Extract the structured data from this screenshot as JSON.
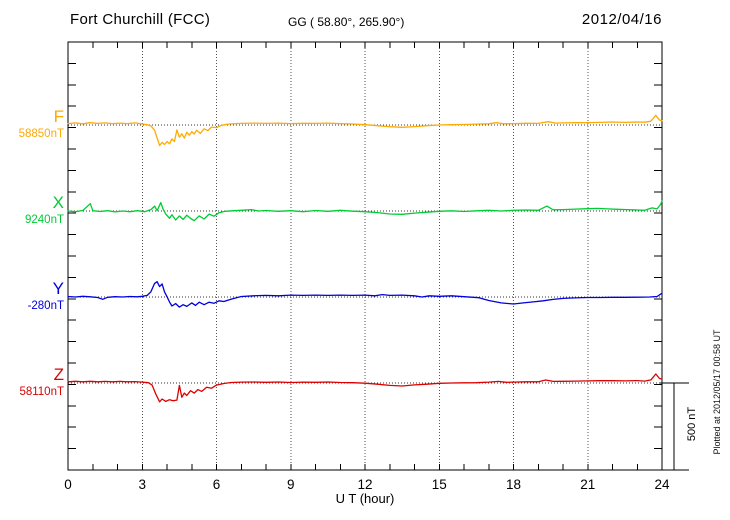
{
  "header": {
    "station": "Fort Churchill (FCC)",
    "coordinates": "GG ( 58.80°, 265.90°)",
    "date": "2012/04/16"
  },
  "footer": {
    "plotted_at": "Plotted at 2012/05/17 00:58 UT"
  },
  "chart_data": {
    "type": "line",
    "title": "Fort Churchill (FCC)",
    "subtitle": "GG ( 58.80°, 265.90°)",
    "date": "2012/04/16",
    "xlabel": "U T (hour)",
    "x_range": [
      0,
      24
    ],
    "x_ticks": [
      0,
      3,
      6,
      9,
      12,
      15,
      18,
      21,
      24
    ],
    "x_minor_tick_interval_hours": 1,
    "grid": {
      "vertical_dotted_every_hours": 3,
      "horizontal_dotted": "one dotted baseline per component"
    },
    "y_scale_bar": {
      "label": "500 nT",
      "nT": 500
    },
    "legend_position": "left margin, one colored label per trace",
    "series": [
      {
        "name": "F",
        "baseline_label": "58850nT",
        "baseline_nT": 58850,
        "color": "#FFAA00",
        "units": "nT deviation from baseline",
        "points": [
          [
            0,
            8
          ],
          [
            0.3,
            12
          ],
          [
            0.6,
            7
          ],
          [
            0.9,
            13
          ],
          [
            1.2,
            9
          ],
          [
            1.5,
            12
          ],
          [
            1.8,
            8
          ],
          [
            2.1,
            11
          ],
          [
            2.4,
            8
          ],
          [
            2.7,
            12
          ],
          [
            3.0,
            6
          ],
          [
            3.2,
            2
          ],
          [
            3.35,
            -5
          ],
          [
            3.5,
            -30
          ],
          [
            3.6,
            -75
          ],
          [
            3.7,
            -118
          ],
          [
            3.8,
            -100
          ],
          [
            3.9,
            -112
          ],
          [
            4.0,
            -95
          ],
          [
            4.1,
            -108
          ],
          [
            4.2,
            -80
          ],
          [
            4.3,
            -95
          ],
          [
            4.4,
            -28
          ],
          [
            4.5,
            -70
          ],
          [
            4.6,
            -50
          ],
          [
            4.7,
            -75
          ],
          [
            4.8,
            -42
          ],
          [
            4.9,
            -58
          ],
          [
            5.0,
            -38
          ],
          [
            5.1,
            -52
          ],
          [
            5.2,
            -30
          ],
          [
            5.35,
            -48
          ],
          [
            5.5,
            -22
          ],
          [
            5.65,
            -32
          ],
          [
            5.8,
            -12
          ],
          [
            6.0,
            -15
          ],
          [
            6.2,
            -2
          ],
          [
            6.5,
            6
          ],
          [
            7,
            9
          ],
          [
            7.5,
            11
          ],
          [
            8,
            9
          ],
          [
            8.5,
            11
          ],
          [
            9,
            8
          ],
          [
            9.5,
            10
          ],
          [
            10,
            9
          ],
          [
            10.5,
            11
          ],
          [
            11,
            8
          ],
          [
            11.5,
            6
          ],
          [
            12,
            2
          ],
          [
            12.5,
            -4
          ],
          [
            13,
            -10
          ],
          [
            13.5,
            -13
          ],
          [
            14,
            -9
          ],
          [
            14.5,
            -4
          ],
          [
            15,
            0
          ],
          [
            15.5,
            2
          ],
          [
            16,
            3
          ],
          [
            16.5,
            5
          ],
          [
            17,
            7
          ],
          [
            17.3,
            13
          ],
          [
            17.6,
            7
          ],
          [
            18,
            8
          ],
          [
            18.5,
            10
          ],
          [
            19,
            9
          ],
          [
            19.4,
            19
          ],
          [
            19.7,
            11
          ],
          [
            20,
            12
          ],
          [
            20.5,
            13
          ],
          [
            21,
            14
          ],
          [
            21.5,
            15
          ],
          [
            22,
            17
          ],
          [
            22.5,
            15
          ],
          [
            23,
            17
          ],
          [
            23.3,
            16
          ],
          [
            23.55,
            22
          ],
          [
            23.75,
            56
          ],
          [
            23.9,
            28
          ],
          [
            24,
            24
          ]
        ]
      },
      {
        "name": "X",
        "baseline_label": "9240nT",
        "baseline_nT": 9240,
        "color": "#00CC33",
        "units": "nT deviation from baseline",
        "points": [
          [
            0,
            0
          ],
          [
            0.3,
            -4
          ],
          [
            0.6,
            3
          ],
          [
            0.9,
            42
          ],
          [
            1.0,
            2
          ],
          [
            1.3,
            -3
          ],
          [
            1.6,
            2
          ],
          [
            1.9,
            -5
          ],
          [
            2.2,
            0
          ],
          [
            2.5,
            -4
          ],
          [
            2.8,
            2
          ],
          [
            3.1,
            -4
          ],
          [
            3.35,
            8
          ],
          [
            3.5,
            28
          ],
          [
            3.6,
            2
          ],
          [
            3.75,
            48
          ],
          [
            3.85,
            8
          ],
          [
            3.95,
            -18
          ],
          [
            4.1,
            -42
          ],
          [
            4.2,
            -22
          ],
          [
            4.35,
            -52
          ],
          [
            4.5,
            -28
          ],
          [
            4.65,
            -48
          ],
          [
            4.8,
            -24
          ],
          [
            4.95,
            -42
          ],
          [
            5.1,
            -56
          ],
          [
            5.3,
            -28
          ],
          [
            5.5,
            -46
          ],
          [
            5.7,
            -18
          ],
          [
            5.9,
            -30
          ],
          [
            6.1,
            -10
          ],
          [
            6.35,
            -2
          ],
          [
            6.7,
            2
          ],
          [
            7,
            4
          ],
          [
            7.4,
            8
          ],
          [
            7.7,
            0
          ],
          [
            8,
            3
          ],
          [
            8.5,
            -2
          ],
          [
            9,
            2
          ],
          [
            9.5,
            -4
          ],
          [
            10,
            3
          ],
          [
            10.5,
            -2
          ],
          [
            11,
            4
          ],
          [
            11.5,
            -1
          ],
          [
            12,
            -4
          ],
          [
            12.5,
            -9
          ],
          [
            13,
            -17
          ],
          [
            13.5,
            -19
          ],
          [
            14,
            -12
          ],
          [
            14.5,
            -7
          ],
          [
            15,
            -2
          ],
          [
            15.5,
            1
          ],
          [
            16,
            -3
          ],
          [
            16.5,
            1
          ],
          [
            17,
            4
          ],
          [
            17.5,
            0
          ],
          [
            18,
            4
          ],
          [
            18.5,
            6
          ],
          [
            19,
            4
          ],
          [
            19.35,
            28
          ],
          [
            19.6,
            7
          ],
          [
            20,
            8
          ],
          [
            20.5,
            11
          ],
          [
            21,
            13
          ],
          [
            21.4,
            15
          ],
          [
            21.8,
            12
          ],
          [
            22.2,
            10
          ],
          [
            22.6,
            8
          ],
          [
            23,
            6
          ],
          [
            23.3,
            4
          ],
          [
            23.6,
            18
          ],
          [
            23.8,
            12
          ],
          [
            23.95,
            40
          ],
          [
            24,
            58
          ]
        ]
      },
      {
        "name": "Y",
        "baseline_label": "-280nT",
        "baseline_nT": -280,
        "color": "#0000DD",
        "units": "nT deviation from baseline",
        "points": [
          [
            0,
            3
          ],
          [
            0.3,
            0
          ],
          [
            0.6,
            4
          ],
          [
            0.9,
            1
          ],
          [
            1.2,
            -3
          ],
          [
            1.4,
            -13
          ],
          [
            1.6,
            -2
          ],
          [
            1.9,
            2
          ],
          [
            2.2,
            0
          ],
          [
            2.5,
            3
          ],
          [
            2.8,
            1
          ],
          [
            3.0,
            4
          ],
          [
            3.2,
            9
          ],
          [
            3.35,
            30
          ],
          [
            3.5,
            78
          ],
          [
            3.6,
            88
          ],
          [
            3.7,
            60
          ],
          [
            3.8,
            75
          ],
          [
            3.9,
            30
          ],
          [
            4.0,
            2
          ],
          [
            4.1,
            -28
          ],
          [
            4.2,
            -52
          ],
          [
            4.35,
            -38
          ],
          [
            4.5,
            -58
          ],
          [
            4.65,
            -44
          ],
          [
            4.8,
            -54
          ],
          [
            5.0,
            -34
          ],
          [
            5.15,
            -48
          ],
          [
            5.3,
            -30
          ],
          [
            5.5,
            -44
          ],
          [
            5.7,
            -30
          ],
          [
            5.9,
            -36
          ],
          [
            6.1,
            -22
          ],
          [
            6.3,
            -26
          ],
          [
            6.6,
            -12
          ],
          [
            7,
            3
          ],
          [
            7.5,
            7
          ],
          [
            8,
            9
          ],
          [
            8.5,
            7
          ],
          [
            9,
            11
          ],
          [
            9.5,
            9
          ],
          [
            10,
            11
          ],
          [
            10.5,
            9
          ],
          [
            11,
            11
          ],
          [
            11.5,
            9
          ],
          [
            12,
            11
          ],
          [
            12.4,
            7
          ],
          [
            12.7,
            14
          ],
          [
            13,
            9
          ],
          [
            13.5,
            11
          ],
          [
            14,
            7
          ],
          [
            14.3,
            0
          ],
          [
            14.6,
            7
          ],
          [
            15,
            4
          ],
          [
            15.5,
            7
          ],
          [
            16,
            2
          ],
          [
            16.6,
            -4
          ],
          [
            17,
            -20
          ],
          [
            17.5,
            -34
          ],
          [
            18,
            -40
          ],
          [
            18.4,
            -34
          ],
          [
            18.8,
            -28
          ],
          [
            19.2,
            -22
          ],
          [
            19.6,
            -14
          ],
          [
            20,
            -8
          ],
          [
            20.5,
            -5
          ],
          [
            21,
            -3
          ],
          [
            21.5,
            -3
          ],
          [
            22,
            -2
          ],
          [
            22.5,
            -2
          ],
          [
            23,
            -1
          ],
          [
            23.5,
            0
          ],
          [
            23.8,
            3
          ],
          [
            24,
            22
          ]
        ]
      },
      {
        "name": "Z",
        "baseline_label": "58110nT",
        "baseline_nT": 58110,
        "color": "#DD0000",
        "units": "nT deviation from baseline",
        "points": [
          [
            0,
            7
          ],
          [
            0.3,
            10
          ],
          [
            0.6,
            7
          ],
          [
            0.9,
            10
          ],
          [
            1.2,
            7
          ],
          [
            1.5,
            9
          ],
          [
            1.8,
            7
          ],
          [
            2.1,
            9
          ],
          [
            2.4,
            7
          ],
          [
            2.7,
            8
          ],
          [
            3.0,
            5
          ],
          [
            3.25,
            2
          ],
          [
            3.4,
            -12
          ],
          [
            3.55,
            -65
          ],
          [
            3.7,
            -108
          ],
          [
            3.8,
            -92
          ],
          [
            3.95,
            -106
          ],
          [
            4.1,
            -96
          ],
          [
            4.25,
            -102
          ],
          [
            4.4,
            -98
          ],
          [
            4.5,
            -14
          ],
          [
            4.6,
            -82
          ],
          [
            4.7,
            -58
          ],
          [
            4.8,
            -72
          ],
          [
            4.95,
            -44
          ],
          [
            5.1,
            -58
          ],
          [
            5.25,
            -38
          ],
          [
            5.4,
            -48
          ],
          [
            5.6,
            -24
          ],
          [
            5.8,
            -30
          ],
          [
            6.0,
            -12
          ],
          [
            6.3,
            -3
          ],
          [
            6.6,
            3
          ],
          [
            7,
            5
          ],
          [
            7.5,
            6
          ],
          [
            8,
            4
          ],
          [
            8.5,
            6
          ],
          [
            9,
            3
          ],
          [
            9.5,
            5
          ],
          [
            10,
            4
          ],
          [
            10.5,
            6
          ],
          [
            11,
            3
          ],
          [
            11.5,
            2
          ],
          [
            12,
            -1
          ],
          [
            12.5,
            -7
          ],
          [
            13,
            -14
          ],
          [
            13.5,
            -17
          ],
          [
            14,
            -11
          ],
          [
            14.5,
            -7
          ],
          [
            15,
            -2
          ],
          [
            15.5,
            0
          ],
          [
            16,
            1
          ],
          [
            16.5,
            2
          ],
          [
            17,
            5
          ],
          [
            17.4,
            9
          ],
          [
            17.7,
            4
          ],
          [
            18,
            5
          ],
          [
            18.5,
            7
          ],
          [
            19,
            7
          ],
          [
            19.3,
            17
          ],
          [
            19.6,
            9
          ],
          [
            20,
            10
          ],
          [
            20.5,
            11
          ],
          [
            21,
            12
          ],
          [
            21.5,
            13
          ],
          [
            22,
            13
          ],
          [
            22.5,
            12
          ],
          [
            23,
            14
          ],
          [
            23.3,
            11
          ],
          [
            23.55,
            18
          ],
          [
            23.75,
            52
          ],
          [
            23.9,
            26
          ],
          [
            24,
            22
          ]
        ]
      }
    ]
  }
}
